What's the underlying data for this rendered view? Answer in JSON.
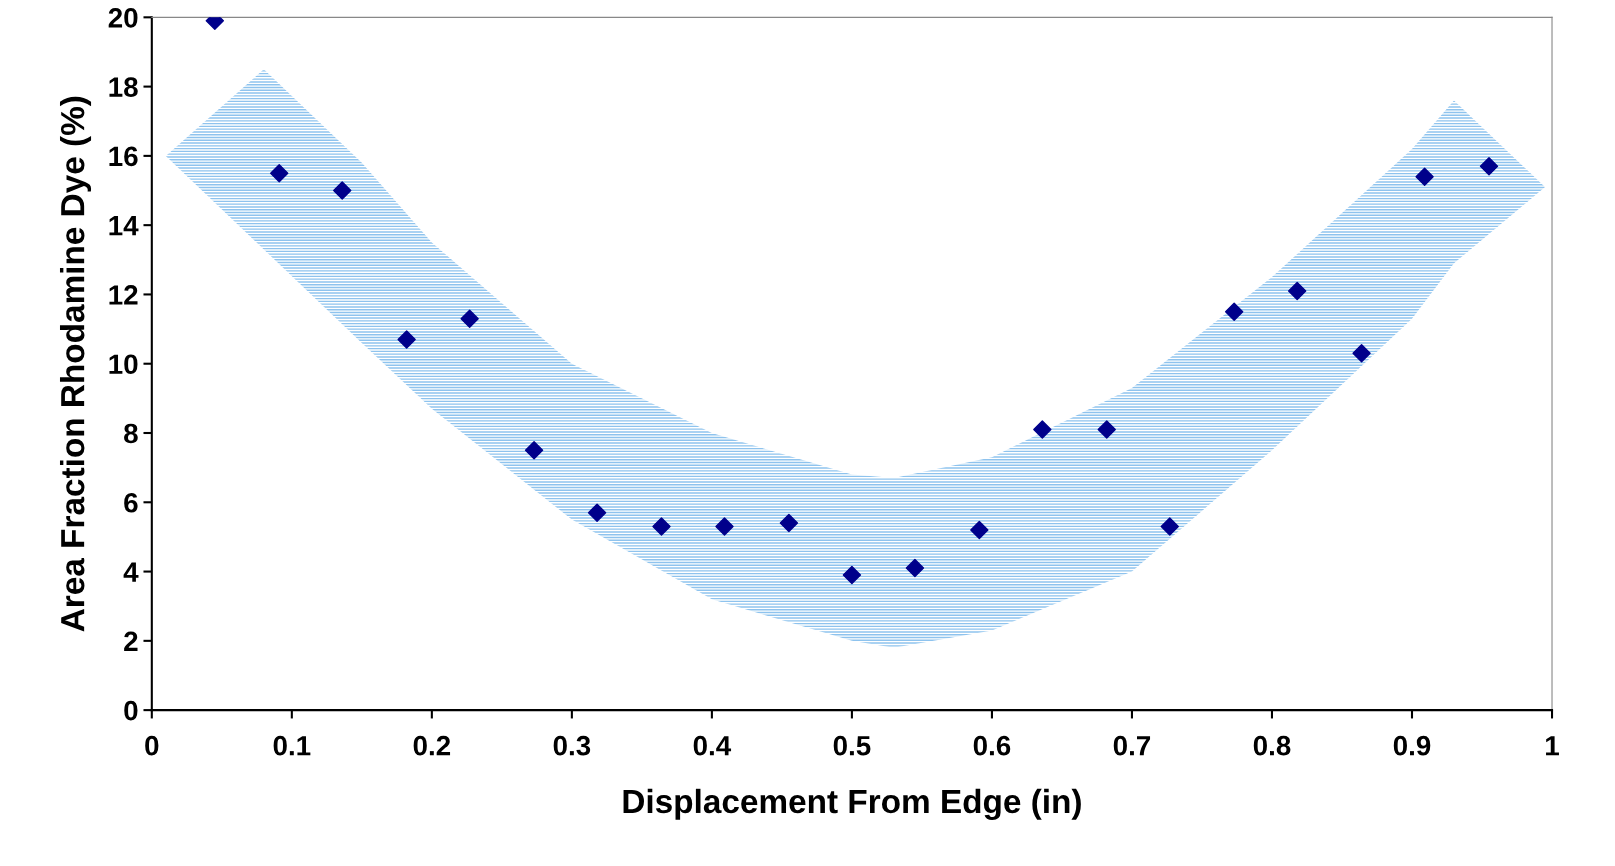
{
  "chart_data": {
    "type": "scatter",
    "xlabel": "Displacement From Edge (in)",
    "ylabel": "Area Fraction Rhodamine Dye (%)",
    "xlim": [
      0,
      1
    ],
    "ylim": [
      0,
      20
    ],
    "xticks": [
      0,
      0.1,
      0.2,
      0.3,
      0.4,
      0.5,
      0.6,
      0.7,
      0.8,
      0.9,
      1
    ],
    "yticks": [
      0,
      2,
      4,
      6,
      8,
      10,
      12,
      14,
      16,
      18,
      20
    ],
    "grid": false,
    "legend": false,
    "marker": "diamond",
    "series": [
      {
        "type": "area",
        "color": "#8ec3ee",
        "x": [
          0.01,
          0.08,
          0.15,
          0.2,
          0.3,
          0.4,
          0.5,
          0.53,
          0.6,
          0.7,
          0.8,
          0.9,
          0.93,
          0.995
        ],
        "values": [
          null,
          null,
          null,
          null,
          null,
          null,
          null,
          null,
          null,
          null,
          null,
          null,
          null,
          null
        ],
        "lower": [
          16,
          13.3,
          10.6,
          8.7,
          5.5,
          3.2,
          2.0,
          1.8,
          2.3,
          4.0,
          7.5,
          11.3,
          12.9,
          15.1
        ],
        "upper": [
          16,
          18.5,
          15.8,
          13.5,
          10,
          8,
          6.8,
          6.7,
          7.3,
          9.3,
          12.5,
          16.2,
          17.6,
          15.1
        ]
      },
      {
        "color": "#00008b",
        "x": [
          0.045,
          0.091,
          0.136,
          0.182,
          0.227,
          0.273,
          0.318,
          0.364,
          0.409,
          0.455,
          0.5,
          0.545,
          0.591,
          0.636,
          0.682,
          0.727,
          0.773,
          0.818,
          0.864,
          0.909,
          0.955
        ],
        "values": [
          19.9,
          15.5,
          15.0,
          10.7,
          11.3,
          7.5,
          5.7,
          5.3,
          5.3,
          5.4,
          3.9,
          4.1,
          5.2,
          8.1,
          8.1,
          5.3,
          11.5,
          12.1,
          10.3,
          15.4,
          15.7
        ]
      }
    ]
  }
}
